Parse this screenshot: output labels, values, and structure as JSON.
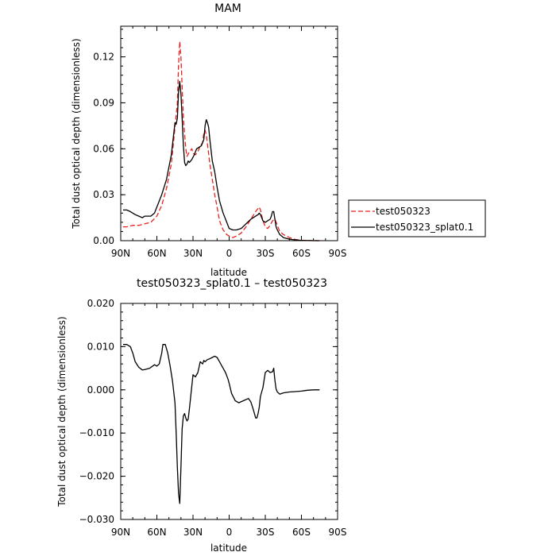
{
  "chart_data": [
    {
      "type": "line",
      "title": "MAM",
      "xlabel": "latitude",
      "ylabel": "Total dust optical depth (dimensionless)",
      "xlim": [
        90,
        -90
      ],
      "ylim": [
        0,
        0.14
      ],
      "x_ticks": [
        90,
        60,
        30,
        0,
        -30,
        -60,
        -90
      ],
      "x_tick_labels": [
        "90N",
        "60N",
        "30N",
        "0",
        "30S",
        "60S",
        "90S"
      ],
      "y_ticks": [
        0,
        0.03,
        0.06,
        0.09,
        0.12
      ],
      "y_tick_labels": [
        "0.00",
        "0.03",
        "0.06",
        "0.09",
        "0.12"
      ],
      "legend": "outside-right",
      "grid": false,
      "series": [
        {
          "name": "test050323",
          "color": "#e8231e",
          "dash": "dashed",
          "x": [
            88,
            85,
            80,
            75,
            70,
            65,
            60,
            56,
            52,
            48,
            45,
            43,
            42,
            41,
            40,
            38,
            36,
            35,
            33,
            31,
            30,
            28,
            26,
            24,
            22,
            21,
            20,
            19,
            18,
            16,
            14,
            12,
            10,
            8,
            5,
            2,
            0,
            -3,
            -6,
            -10,
            -14,
            -18,
            -22,
            -24,
            -25,
            -26,
            -28,
            -30,
            -32,
            -34,
            -36,
            -38,
            -40,
            -42,
            -45,
            -50,
            -55,
            -60,
            -65,
            -70,
            -75
          ],
          "y": [
            0.009,
            0.009,
            0.01,
            0.01,
            0.011,
            0.012,
            0.016,
            0.023,
            0.034,
            0.05,
            0.074,
            0.09,
            0.115,
            0.13,
            0.12,
            0.08,
            0.06,
            0.055,
            0.058,
            0.06,
            0.057,
            0.056,
            0.058,
            0.062,
            0.064,
            0.07,
            0.072,
            0.069,
            0.063,
            0.05,
            0.04,
            0.03,
            0.022,
            0.013,
            0.007,
            0.004,
            0.003,
            0.002,
            0.003,
            0.005,
            0.009,
            0.014,
            0.019,
            0.021,
            0.022,
            0.02,
            0.013,
            0.009,
            0.008,
            0.01,
            0.013,
            0.014,
            0.01,
            0.006,
            0.004,
            0.002,
            0.0008,
            0.0003,
            0.0001,
            5e-05,
            0.0
          ]
        },
        {
          "name": "test050323_splat0.1",
          "color": "#000000",
          "dash": "solid",
          "x": [
            88,
            85,
            82,
            80,
            78,
            75,
            72,
            70,
            65,
            62,
            60,
            56,
            52,
            48,
            45,
            44,
            43,
            42,
            41,
            40,
            39,
            38,
            37,
            36,
            35,
            34,
            33,
            31,
            29,
            27,
            25,
            23,
            21,
            20,
            19,
            18,
            17,
            16,
            14,
            12,
            10,
            8,
            5,
            2,
            0,
            -3,
            -6,
            -10,
            -14,
            -18,
            -20,
            -22,
            -24,
            -25,
            -26,
            -27,
            -28,
            -30,
            -32,
            -34,
            -35,
            -36,
            -37,
            -38,
            -39,
            -40,
            -42,
            -45,
            -50,
            -55,
            -60,
            -65,
            -70,
            -75
          ],
          "y": [
            0.02,
            0.02,
            0.019,
            0.018,
            0.017,
            0.016,
            0.015,
            0.016,
            0.016,
            0.018,
            0.022,
            0.03,
            0.04,
            0.056,
            0.077,
            0.076,
            0.08,
            0.097,
            0.104,
            0.096,
            0.08,
            0.062,
            0.051,
            0.049,
            0.05,
            0.052,
            0.051,
            0.053,
            0.056,
            0.06,
            0.061,
            0.062,
            0.066,
            0.075,
            0.079,
            0.077,
            0.074,
            0.066,
            0.052,
            0.045,
            0.035,
            0.026,
            0.018,
            0.012,
            0.008,
            0.007,
            0.007,
            0.008,
            0.011,
            0.014,
            0.015,
            0.016,
            0.017,
            0.018,
            0.017,
            0.015,
            0.013,
            0.012,
            0.013,
            0.014,
            0.016,
            0.019,
            0.019,
            0.014,
            0.009,
            0.007,
            0.004,
            0.002,
            0.001,
            0.0005,
            0.0002,
            0.0001,
            0.0,
            0.0
          ]
        }
      ]
    },
    {
      "type": "line",
      "title": "test050323_splat0.1 – test050323",
      "xlabel": "latitude",
      "ylabel": "Total dust optical depth (dimensionless)",
      "xlim": [
        90,
        -90
      ],
      "ylim": [
        -0.03,
        0.02
      ],
      "x_ticks": [
        90,
        60,
        30,
        0,
        -30,
        -60,
        -90
      ],
      "x_tick_labels": [
        "90N",
        "60N",
        "30N",
        "0",
        "30S",
        "60S",
        "90S"
      ],
      "y_ticks": [
        -0.03,
        -0.02,
        -0.01,
        0,
        0.01,
        0.02
      ],
      "y_tick_labels": [
        "−0.030",
        "−0.020",
        "−0.010",
        "0.000",
        "0.010",
        "0.020"
      ],
      "grid": false,
      "series": [
        {
          "color": "#000000",
          "dash": "solid",
          "x": [
            88,
            85,
            82,
            80,
            78,
            75,
            72,
            70,
            66,
            62,
            60,
            58,
            56,
            55,
            53,
            51,
            49,
            47,
            45,
            44,
            43,
            42,
            41,
            40,
            39,
            38,
            37,
            36,
            35,
            34,
            33,
            30,
            28,
            26,
            24,
            22,
            21,
            20,
            18,
            16,
            14,
            12,
            10,
            8,
            6,
            5,
            3,
            1,
            0,
            -2,
            -5,
            -8,
            -12,
            -16,
            -18,
            -20,
            -22,
            -23,
            -24,
            -25,
            -26,
            -28,
            -30,
            -32,
            -34,
            -36,
            -37,
            -38,
            -39,
            -40,
            -42,
            -45,
            -50,
            -55,
            -60,
            -65,
            -70,
            -75
          ],
          "y": [
            0.0105,
            0.0105,
            0.01,
            0.0085,
            0.0065,
            0.0052,
            0.0046,
            0.0047,
            0.005,
            0.0058,
            0.0055,
            0.006,
            0.0085,
            0.0105,
            0.0105,
            0.0085,
            0.0055,
            0.002,
            -0.003,
            -0.01,
            -0.018,
            -0.024,
            -0.0263,
            -0.018,
            -0.009,
            -0.006,
            -0.0055,
            -0.0065,
            -0.0072,
            -0.0068,
            -0.0045,
            0.0035,
            0.003,
            0.004,
            0.0065,
            0.006,
            0.0068,
            0.0065,
            0.007,
            0.0072,
            0.0075,
            0.0078,
            0.0075,
            0.0065,
            0.0055,
            0.005,
            0.004,
            0.0025,
            0.0015,
            -0.0008,
            -0.0025,
            -0.003,
            -0.0025,
            -0.002,
            -0.0028,
            -0.0045,
            -0.0065,
            -0.0065,
            -0.0055,
            -0.004,
            -0.0015,
            0.0005,
            0.004,
            0.0045,
            0.004,
            0.0042,
            0.005,
            0.0022,
            0.0002,
            -0.0005,
            -0.001,
            -0.0007,
            -0.0005,
            -0.0004,
            -0.0003,
            -0.0001,
            0.0,
            0.0
          ]
        }
      ]
    }
  ]
}
